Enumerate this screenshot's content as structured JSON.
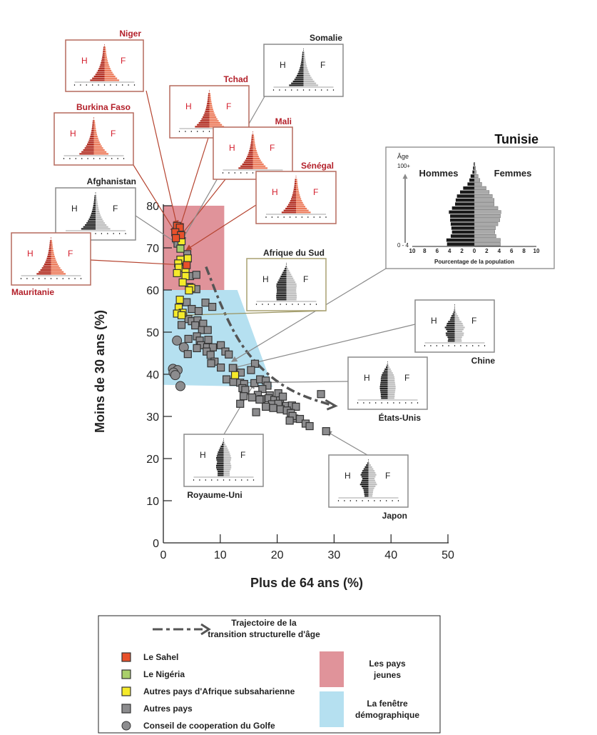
{
  "chart_data": {
    "type": "scatter",
    "title": "",
    "xlabel": "Plus de 64 ans (%)",
    "ylabel": "Moins de 30 ans (%)",
    "xlim": [
      0,
      50
    ],
    "ylim": [
      0,
      80
    ],
    "xticks": [
      0,
      10,
      20,
      30,
      40,
      50
    ],
    "yticks": [
      0,
      10,
      20,
      30,
      40,
      50,
      60,
      70,
      80
    ],
    "grid": false,
    "regions": [
      {
        "name": "Les pays jeunes",
        "color": "#e0939a",
        "polygon": [
          [
            0,
            60
          ],
          [
            10.7,
            60
          ],
          [
            10.7,
            80
          ],
          [
            0,
            80
          ]
        ]
      },
      {
        "name": "La fenêtre démographique",
        "color": "#b5e0f0",
        "polygon": [
          [
            0,
            37.5
          ],
          [
            19.2,
            37
          ],
          [
            13,
            60
          ],
          [
            0,
            60
          ]
        ]
      }
    ],
    "trajectory": {
      "label": "Trajectoire de la transition structurelle d'âge",
      "points": [
        [
          7.5,
          65.5
        ],
        [
          10.5,
          55
        ],
        [
          14,
          46
        ],
        [
          19,
          39
        ],
        [
          24,
          35
        ],
        [
          30,
          32.5
        ]
      ]
    },
    "series": [
      {
        "name": "Le Sahel",
        "marker": "square",
        "color": "#e8502a",
        "points": [
          [
            2.4,
            75.2
          ],
          [
            2.9,
            74.8
          ],
          [
            2.1,
            73.7
          ],
          [
            3.1,
            73.0
          ],
          [
            2.2,
            72.3
          ],
          [
            4.1,
            65.9
          ]
        ]
      },
      {
        "name": "Le Nigéria",
        "marker": "square",
        "color": "#a9cf6a",
        "points": [
          [
            3.0,
            69.8
          ]
        ]
      },
      {
        "name": "Autres pays d'Afrique subsaharienne",
        "marker": "square",
        "color": "#f5ea2a",
        "points": [
          [
            3.2,
            71.6
          ],
          [
            3.0,
            67.2
          ],
          [
            2.6,
            66.3
          ],
          [
            4.3,
            67.5
          ],
          [
            2.7,
            65.3
          ],
          [
            3.9,
            65.0
          ],
          [
            2.4,
            64.0
          ],
          [
            3.9,
            63.3
          ],
          [
            3.4,
            61.8
          ],
          [
            4.9,
            60.5
          ],
          [
            4.5,
            59.9
          ],
          [
            2.9,
            57.7
          ],
          [
            2.7,
            55.8
          ],
          [
            3.4,
            54.6
          ],
          [
            2.4,
            54.4
          ],
          [
            3.2,
            54.0
          ],
          [
            12.6,
            39.8
          ]
        ]
      },
      {
        "name": "Autres pays",
        "marker": "square",
        "color": "#8c8c8e",
        "points": [
          [
            2.5,
            71.0
          ],
          [
            4.2,
            68.5
          ],
          [
            4.7,
            63.3
          ],
          [
            5.8,
            63.6
          ],
          [
            4.6,
            60.7
          ],
          [
            5.8,
            60.2
          ],
          [
            4.1,
            57.1
          ],
          [
            5.0,
            55.5
          ],
          [
            7.4,
            57.0
          ],
          [
            6.2,
            55.0
          ],
          [
            8.6,
            56.0
          ],
          [
            4.4,
            53.1
          ],
          [
            5.0,
            52.6
          ],
          [
            6.0,
            52.8
          ],
          [
            7.0,
            52.0
          ],
          [
            5.6,
            51.6
          ],
          [
            3.2,
            51.7
          ],
          [
            6.8,
            50.5
          ],
          [
            7.8,
            50.5
          ],
          [
            5.9,
            49.0
          ],
          [
            4.4,
            48.4
          ],
          [
            6.4,
            48.0
          ],
          [
            7.9,
            48.2
          ],
          [
            6.6,
            46.9
          ],
          [
            7.7,
            46.4
          ],
          [
            8.7,
            46.4
          ],
          [
            7.6,
            45.4
          ],
          [
            8.3,
            44.6
          ],
          [
            5.9,
            46.2
          ],
          [
            4.3,
            44.8
          ],
          [
            10.1,
            46.9
          ],
          [
            10.9,
            45.4
          ],
          [
            9.0,
            43.0
          ],
          [
            11.5,
            44.7
          ],
          [
            12.2,
            41.5
          ],
          [
            13.6,
            40.4
          ],
          [
            16.1,
            42.5
          ],
          [
            15.4,
            41.0
          ],
          [
            8.4,
            42.6
          ],
          [
            10.1,
            41.6
          ],
          [
            11.1,
            38.8
          ],
          [
            12.3,
            38.2
          ],
          [
            13.5,
            38.0
          ],
          [
            14.2,
            37.7
          ],
          [
            16.0,
            37.9
          ],
          [
            17.0,
            38.8
          ],
          [
            18.0,
            38.5
          ],
          [
            18.3,
            37.3
          ],
          [
            17.4,
            36.5
          ],
          [
            13.9,
            36.7
          ],
          [
            14.4,
            36.3
          ],
          [
            16.6,
            35.1
          ],
          [
            18.7,
            35.0
          ],
          [
            17.2,
            34.1
          ],
          [
            18.5,
            34.3
          ],
          [
            19.5,
            33.9
          ],
          [
            20.2,
            35.5
          ],
          [
            20.5,
            33.8
          ],
          [
            21.0,
            34.7
          ],
          [
            14.1,
            34.8
          ],
          [
            15.6,
            34.5
          ],
          [
            16.9,
            34.0
          ],
          [
            19.1,
            32.9
          ],
          [
            20.2,
            33.0
          ],
          [
            21.6,
            32.5
          ],
          [
            22.6,
            32.6
          ],
          [
            23.3,
            32.3
          ],
          [
            13.5,
            33.0
          ],
          [
            16.3,
            31.0
          ],
          [
            18.0,
            32.3
          ],
          [
            19.3,
            32.0
          ],
          [
            20.6,
            31.7
          ],
          [
            21.7,
            31.4
          ],
          [
            22.4,
            30.8
          ],
          [
            23.0,
            29.5
          ],
          [
            24.0,
            29.4
          ],
          [
            25.0,
            28.3
          ],
          [
            25.7,
            27.7
          ],
          [
            22.7,
            30.1
          ],
          [
            22.2,
            29.0
          ],
          [
            27.7,
            35.3
          ],
          [
            28.6,
            26.5
          ]
        ]
      },
      {
        "name": "Conseil de cooperation du Golfe",
        "marker": "circle",
        "color": "#8c8c8e",
        "points": [
          [
            2.4,
            48.0
          ],
          [
            3.6,
            46.4
          ],
          [
            1.7,
            41.3
          ],
          [
            2.5,
            41.0
          ],
          [
            1.8,
            40.4
          ],
          [
            2.1,
            39.8
          ],
          [
            3.0,
            37.2
          ]
        ]
      }
    ],
    "legend": {
      "position": "bottom",
      "trajectory_label_line1": "Trajectoire de la",
      "trajectory_label_line2": "transition structurelle d'âge",
      "items": [
        {
          "label": "Le Sahel",
          "color": "#e8502a",
          "marker": "square"
        },
        {
          "label": "Le Nigéria",
          "color": "#a9cf6a",
          "marker": "square"
        },
        {
          "label": "Autres pays d'Afrique subsaharienne",
          "color": "#f5ea2a",
          "marker": "square"
        },
        {
          "label": "Autres pays",
          "color": "#8c8c8e",
          "marker": "square"
        },
        {
          "label": "Conseil de cooperation du Golfe",
          "color": "#8c8c8e",
          "marker": "circle"
        }
      ],
      "regions": [
        {
          "line1": "Les pays",
          "line2": "jeunes",
          "color": "#e0939a"
        },
        {
          "line1": "La fenêtre",
          "line2": "démographique",
          "color": "#b5e0f0"
        }
      ]
    },
    "insets": [
      {
        "country": "Niger",
        "style": "red",
        "male_label": "H",
        "female_label": "F",
        "points_to": [
          2.4,
          75.2
        ],
        "shape": "young"
      },
      {
        "country": "Burkina Faso",
        "style": "red",
        "male_label": "H",
        "female_label": "F",
        "points_to": [
          2.1,
          73.7
        ],
        "shape": "young"
      },
      {
        "country": "Tchad",
        "style": "red",
        "male_label": "H",
        "female_label": "F",
        "points_to": [
          2.9,
          74.8
        ],
        "shape": "young"
      },
      {
        "country": "Mali",
        "style": "red",
        "male_label": "H",
        "female_label": "F",
        "points_to": [
          3.1,
          73.0
        ],
        "shape": "young"
      },
      {
        "country": "Somalie",
        "style": "dark",
        "male_label": "H",
        "female_label": "F",
        "points_to": [
          3.2,
          71.6
        ],
        "shape": "young"
      },
      {
        "country": "Sénégal",
        "style": "red",
        "male_label": "H",
        "female_label": "F",
        "points_to": [
          4.0,
          69.5
        ],
        "shape": "young"
      },
      {
        "country": "Afghanistan",
        "style": "dark",
        "male_label": "H",
        "female_label": "F",
        "points_to": [
          2.5,
          71.0
        ],
        "shape": "young"
      },
      {
        "country": "Mauritanie",
        "style": "red",
        "male_label": "H",
        "female_label": "F",
        "points_to": [
          4.1,
          65.9
        ],
        "shape": "young"
      },
      {
        "country": "Afrique du Sud",
        "style": "olive",
        "male_label": "H",
        "female_label": "F",
        "points_to": [
          3.3,
          54.0
        ],
        "shape": "transition"
      },
      {
        "country": "Chine",
        "style": "dark",
        "male_label": "H",
        "female_label": "F",
        "points_to": [
          12.2,
          41.5
        ],
        "shape": "china"
      },
      {
        "country": "États-Unis",
        "style": "dark",
        "male_label": "H",
        "female_label": "F",
        "points_to": [
          13.6,
          38.0
        ],
        "shape": "mature"
      },
      {
        "country": "Royaume-Uni",
        "style": "dark",
        "male_label": "H",
        "female_label": "F",
        "points_to": [
          16.0,
          37.9
        ],
        "shape": "old"
      },
      {
        "country": "Japon",
        "style": "dark",
        "male_label": "H",
        "female_label": "F",
        "points_to": [
          28.6,
          26.5
        ],
        "shape": "japan"
      }
    ],
    "featured_inset": {
      "country": "Tunisie",
      "age_axis_label": "Âge",
      "age_top": "100+",
      "age_bottom": "0 - 4",
      "male_label": "Hommes",
      "female_label": "Femmes",
      "xlabel": "Pourcentage de la population",
      "xticks": [
        "10",
        "8",
        "6",
        "4",
        "2",
        "0",
        "2",
        "4",
        "6",
        "8",
        "10"
      ],
      "male_pct": [
        4.4,
        4.5,
        3.8,
        3.6,
        3.7,
        3.8,
        3.9,
        3.9,
        4.1,
        3.6,
        3.1,
        3.0,
        2.8,
        2.3,
        1.8,
        1.1,
        0.8,
        0.6,
        0.3,
        0.2,
        0.1
      ],
      "female_pct": [
        4.2,
        4.2,
        3.5,
        3.3,
        3.4,
        3.8,
        4.1,
        4.2,
        4.3,
        3.8,
        3.2,
        3.2,
        2.9,
        2.4,
        1.9,
        1.2,
        0.9,
        0.6,
        0.3,
        0.2,
        0.1
      ],
      "points_to": [
        12.0,
        43.0
      ]
    }
  }
}
